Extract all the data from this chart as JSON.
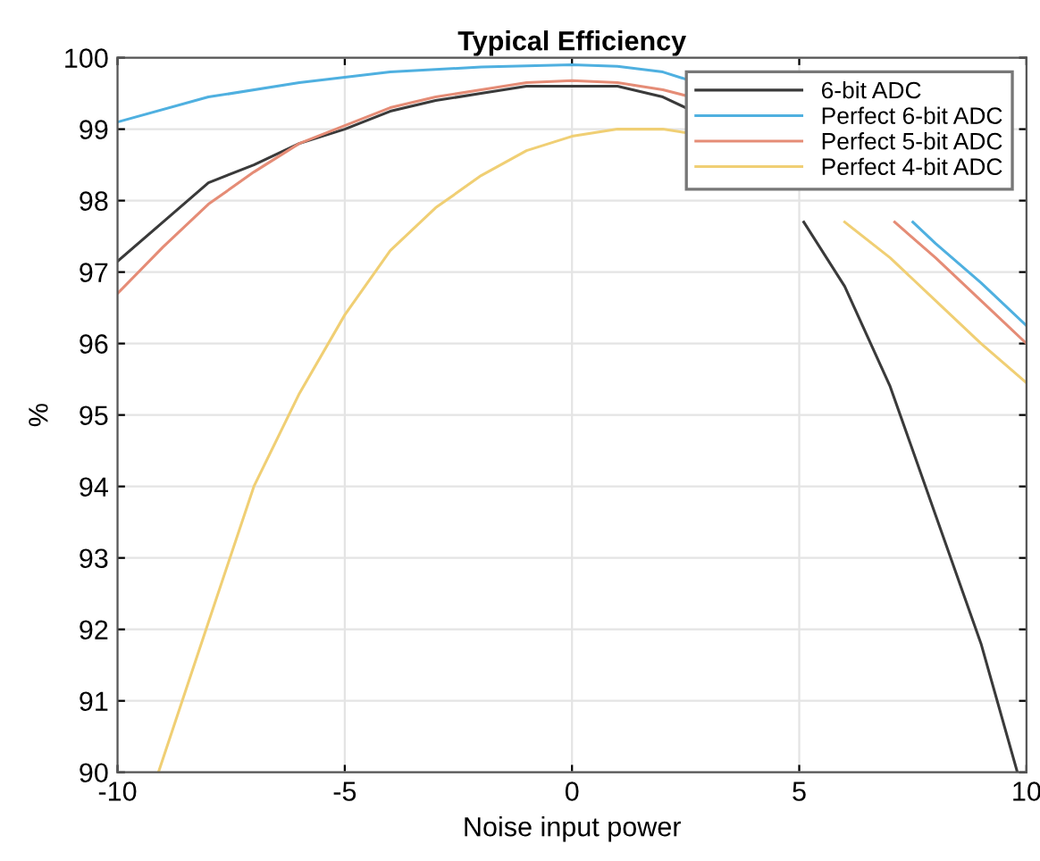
{
  "chart_data": {
    "type": "line",
    "title": "Typical Efficiency",
    "xlabel": "Noise input power",
    "ylabel": "%",
    "xlim": [
      -10,
      10
    ],
    "xticks": [
      -10,
      -5,
      0,
      5,
      10
    ],
    "ylim": [
      90,
      100
    ],
    "yticks": [
      90,
      91,
      92,
      93,
      94,
      95,
      96,
      97,
      98,
      99,
      100
    ],
    "grid": true,
    "legend": "top right",
    "line_style": "solid",
    "marker": "none",
    "series": [
      {
        "name": "6-bit ADC",
        "color": "#3a3a3a",
        "x": [
          -10,
          -9,
          -8,
          -7,
          -6,
          -5,
          -4,
          -3,
          -2,
          -1,
          0,
          1,
          2,
          2.5,
          4,
          5.1,
          6,
          7,
          8,
          9,
          9.8
        ],
        "values": [
          97.15,
          97.7,
          98.25,
          98.5,
          98.8,
          99.0,
          99.25,
          99.4,
          99.5,
          99.6,
          99.6,
          99.6,
          99.45,
          99.3,
          null,
          97.7,
          96.8,
          95.4,
          93.6,
          91.8,
          90.0
        ]
      },
      {
        "name": "Perfect 6-bit ADC",
        "color": "#4fb0e0",
        "x": [
          -10,
          -8,
          -6,
          -4,
          -2,
          0,
          1,
          2,
          2.5,
          5,
          7.5,
          8,
          9,
          10
        ],
        "values": [
          99.1,
          99.45,
          99.65,
          99.8,
          99.87,
          99.9,
          99.88,
          99.8,
          99.7,
          null,
          97.7,
          97.4,
          96.85,
          96.25
        ]
      },
      {
        "name": "Perfect 5-bit ADC",
        "color": "#e58c76",
        "x": [
          -10,
          -9,
          -8,
          -7,
          -6,
          -5,
          -4,
          -3,
          -2,
          -1,
          0,
          1,
          2,
          2.5,
          5,
          7.1,
          8,
          9,
          10
        ],
        "values": [
          96.7,
          97.35,
          97.95,
          98.4,
          98.8,
          99.05,
          99.3,
          99.45,
          99.55,
          99.65,
          99.68,
          99.65,
          99.55,
          99.47,
          null,
          97.7,
          97.2,
          96.6,
          96.0
        ]
      },
      {
        "name": "Perfect 4-bit ADC",
        "color": "#f0cf74",
        "x": [
          -9.1,
          -8,
          -7,
          -6,
          -5,
          -4,
          -3,
          -2,
          -1,
          0,
          1,
          2,
          2.5,
          4.5,
          6.0,
          7,
          8,
          9,
          10
        ],
        "values": [
          90.0,
          92.1,
          94.0,
          95.3,
          96.4,
          97.3,
          97.9,
          98.35,
          98.7,
          98.9,
          99.0,
          99.0,
          98.95,
          null,
          97.7,
          97.2,
          96.6,
          96.0,
          95.45
        ]
      }
    ]
  }
}
